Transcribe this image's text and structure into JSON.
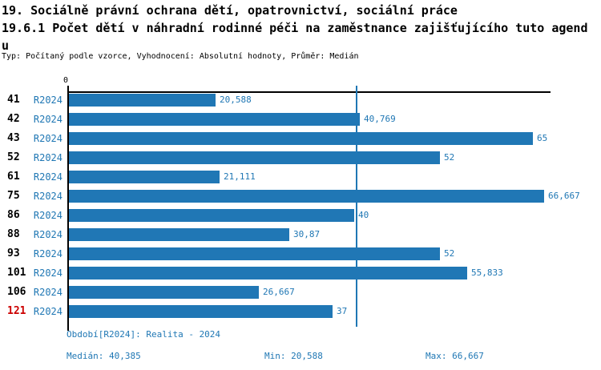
{
  "header": {
    "title_line1": "19. Sociálně právní ochrana dětí, opatrovnictví, sociální práce",
    "title_line2": "19.6.1 Počet dětí v náhradní rodinné péči na zaměstnance zajišťujícího tuto agend",
    "title_line2_wrap": "u",
    "subtitle": "Typ: Počítaný podle vzorce, Vyhodnocení: Absolutní hodnoty, Průměr: Medián"
  },
  "chart_data": {
    "type": "bar",
    "orientation": "horizontal",
    "title": "19.6.1 Počet dětí v náhradní rodinné péči na zaměstnance zajišťujícího tuto agendu",
    "axis_origin_label": "0",
    "xlim": [
      0,
      67.5
    ],
    "grid": false,
    "legend_position": "none",
    "period_label": "R2024",
    "categories": [
      "41",
      "42",
      "43",
      "52",
      "61",
      "75",
      "86",
      "88",
      "93",
      "101",
      "106",
      "121"
    ],
    "values": [
      20.588,
      40.769,
      65,
      52,
      21.111,
      66.667,
      40,
      30.87,
      52,
      55.833,
      26.667,
      37
    ],
    "value_labels": [
      "20,588",
      "40,769",
      "65",
      "52",
      "21,111",
      "66,667",
      "40",
      "30,87",
      "52",
      "55,833",
      "26,667",
      "37"
    ],
    "highlighted_category": "121",
    "median_value": 40.385,
    "colors": {
      "bar": "#2077b5",
      "value_text": "#1f77b4",
      "period_text": "#1f77b4",
      "category_text": "#000000",
      "highlight_text": "#cc0000",
      "median_line": "#1f77b4",
      "axis": "#000000"
    }
  },
  "footer": {
    "period": "Období[R2024]: Realita - 2024",
    "median": "Medián: 40,385",
    "min": "Min: 20,588",
    "max": "Max: 66,667"
  }
}
